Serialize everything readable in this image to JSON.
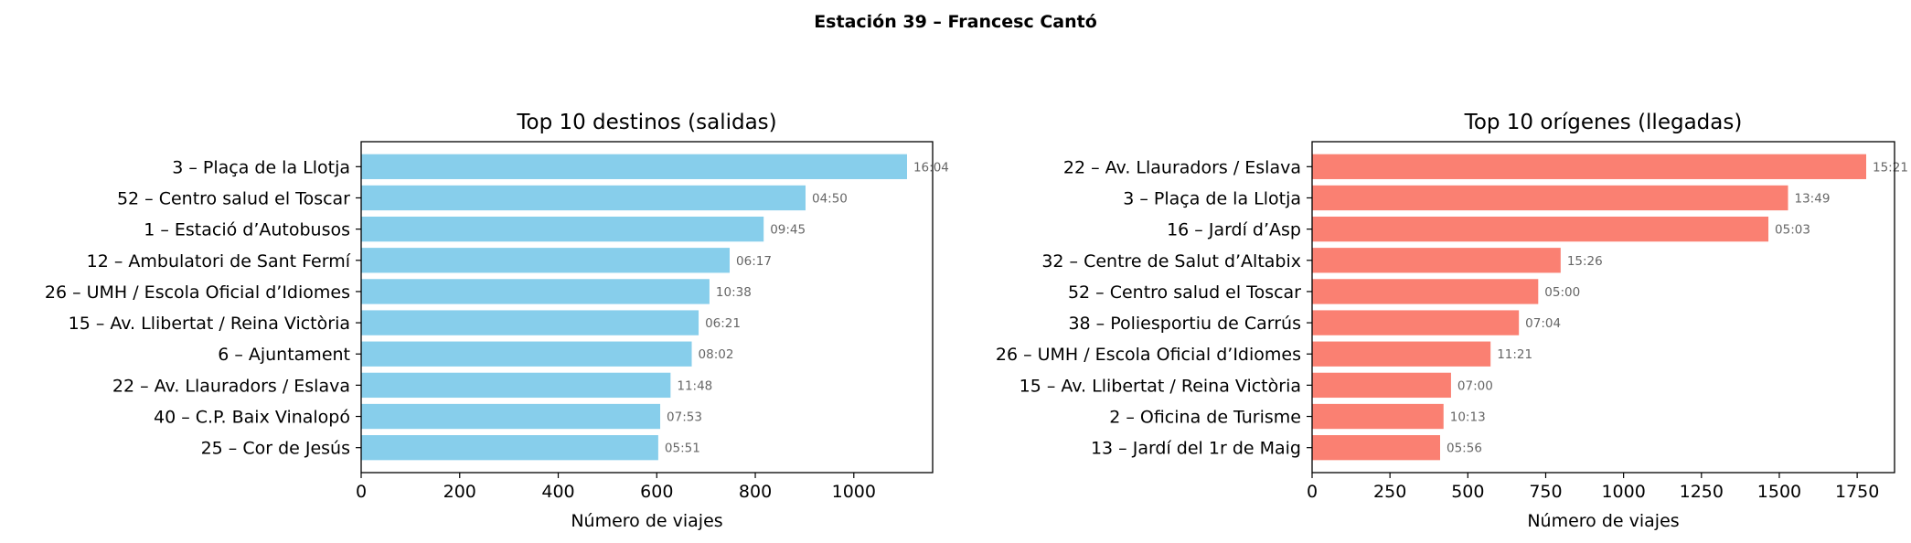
{
  "figure_title": "Estación 39 – Francesc Cantó",
  "chart_data": [
    {
      "type": "bar",
      "orientation": "horizontal",
      "title": "Top 10 destinos (salidas)",
      "xlabel": "Número de viajes",
      "ylabel": "",
      "xlim": [
        0,
        1160
      ],
      "xticks": [
        0,
        200,
        400,
        600,
        800,
        1000
      ],
      "grid": false,
      "color": "#87ceeb",
      "categories": [
        "3 – Plaça de la Llotja",
        "52 – Centro salud el Toscar",
        "1 – Estació d’Autobusos",
        "12 – Ambulatori de Sant Fermí",
        "26 – UMH / Escola Oficial d’Idiomes",
        "15 – Av. Llibertat / Reina Victòria",
        "6 – Ajuntament",
        "22 – Av. Llauradors / Eslava",
        "40 – C.P. Baix Vinalopó",
        "25 – Cor de Jesús"
      ],
      "values": [
        1108,
        902,
        817,
        748,
        707,
        685,
        671,
        628,
        607,
        603
      ],
      "data_labels": [
        "16:04",
        "04:50",
        "09:45",
        "06:17",
        "10:38",
        "06:21",
        "08:02",
        "11:48",
        "07:53",
        "05:51"
      ]
    },
    {
      "type": "bar",
      "orientation": "horizontal",
      "title": "Top 10 orígenes (llegadas)",
      "xlabel": "Número de viajes",
      "ylabel": "",
      "xlim": [
        0,
        1870
      ],
      "xticks": [
        0,
        250,
        500,
        750,
        1000,
        1250,
        1500,
        1750
      ],
      "grid": false,
      "color": "#fa8072",
      "categories": [
        "22 – Av. Llauradors / Eslava",
        "3 – Plaça de la Llotja",
        "16 – Jardí d’Asp",
        "32 – Centre de Salut d’Altabix",
        "52 – Centro salud el Toscar",
        "38 – Poliesportiu de Carrús",
        "26 – UMH / Escola Oficial d’Idiomes",
        "15 – Av. Llibertat / Reina Victòria",
        "2 – Oficina de Turisme",
        "13 – Jardí del 1r de Maig"
      ],
      "values": [
        1779,
        1528,
        1465,
        798,
        726,
        664,
        573,
        446,
        422,
        411
      ],
      "data_labels": [
        "15:21",
        "13:49",
        "05:03",
        "15:26",
        "05:00",
        "07:04",
        "11:21",
        "07:00",
        "10:13",
        "05:56"
      ]
    }
  ]
}
